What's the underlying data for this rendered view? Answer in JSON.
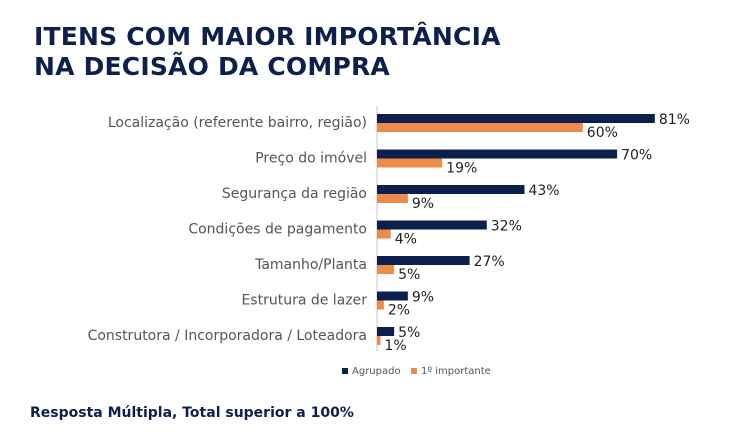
{
  "title": {
    "line1": "ITENS COM MAIOR IMPORTÂNCIA",
    "line2": "NA DECISÃO DA COMPRA"
  },
  "footnote": "Resposta Múltipla, Total superior a 100%",
  "colors": {
    "title": "#0d1f4d",
    "series_agrupado": "#0d1f4d",
    "series_primeiro": "#ed8b4a",
    "axis": "#c8c8c8",
    "label": "#555555"
  },
  "chart_data": {
    "type": "bar",
    "orientation": "horizontal",
    "categories": [
      "Localização (referente bairro, região)",
      "Preço do imóvel",
      "Segurança da região",
      "Condições de pagamento",
      "Tamanho/Planta",
      "Estrutura de lazer",
      "Construtora / Incorporadora / Loteadora"
    ],
    "series": [
      {
        "name": "Agrupado",
        "values": [
          81,
          70,
          43,
          32,
          27,
          9,
          5
        ]
      },
      {
        "name": "1º importante",
        "values": [
          60,
          19,
          9,
          4,
          5,
          2,
          1
        ]
      }
    ],
    "value_suffix": "%",
    "xlim": [
      0,
      100
    ],
    "grid": false,
    "legend_position": "bottom"
  }
}
